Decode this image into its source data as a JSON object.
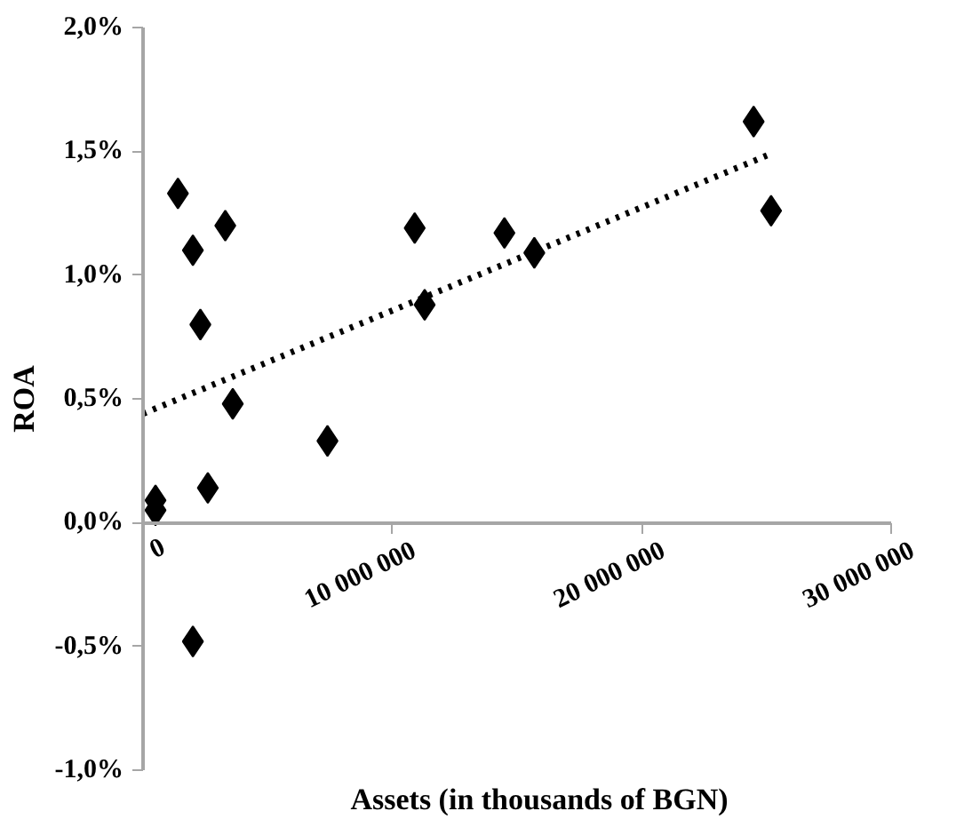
{
  "chart_data": {
    "type": "scatter",
    "xlabel": "Assets (in thousands of BGN)",
    "ylabel": "ROA",
    "marker": "diamond",
    "grid": false,
    "xlim": [
      0,
      30000000
    ],
    "xticks": [
      {
        "value": 0,
        "label": "0"
      },
      {
        "value": 10000000,
        "label": "10 000 000"
      },
      {
        "value": 20000000,
        "label": "20 000 000"
      },
      {
        "value": 30000000,
        "label": "30 000 000"
      }
    ],
    "ylim": [
      -1.0,
      2.0
    ],
    "yticks": [
      {
        "value": -1.0,
        "label": "-1,0%"
      },
      {
        "value": -0.5,
        "label": "-0,5%"
      },
      {
        "value": 0,
        "label": "0,0%"
      },
      {
        "value": 0.5,
        "label": "0,5%"
      },
      {
        "value": 1.0,
        "label": "1,0%"
      },
      {
        "value": 1.5,
        "label": "1,5%"
      },
      {
        "value": 2.0,
        "label": "2,0%"
      }
    ],
    "series": [
      {
        "color": "#000000",
        "x": [
          1400000,
          2000000,
          3300000,
          2300000,
          3600000,
          500000,
          500000,
          2600000,
          7400000,
          2000000,
          10900000,
          11300000,
          14500000,
          15700000,
          24500000,
          25200000
        ],
        "values": [
          1.33,
          1.1,
          1.2,
          0.8,
          0.48,
          0.09,
          0.05,
          0.14,
          0.33,
          -0.48,
          1.19,
          0.88,
          1.17,
          1.09,
          1.62,
          1.26
        ]
      },
      {
        "type": "line",
        "color": "#000000",
        "line_style": "dotted",
        "marker": "none",
        "x": [
          0,
          25200000
        ],
        "values": [
          0.44,
          1.49
        ]
      }
    ]
  }
}
